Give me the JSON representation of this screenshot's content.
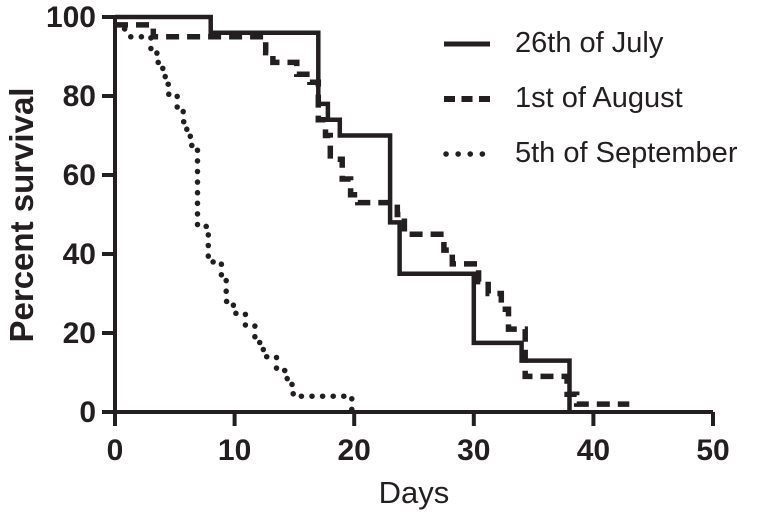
{
  "chart_data": {
    "type": "line",
    "subtype": "kaplan-meier-survival-steps",
    "title": "",
    "xlabel": "Days",
    "ylabel": "Percent survival",
    "xlim": [
      0,
      50
    ],
    "ylim": [
      0,
      100
    ],
    "xticks": [
      0,
      10,
      20,
      30,
      40,
      50
    ],
    "yticks": [
      0,
      20,
      40,
      60,
      80,
      100
    ],
    "grid": false,
    "legend_position": "top-right",
    "ink_color": "#231f20",
    "background_color": "#ffffff",
    "series": [
      {
        "name": "26th of July",
        "line_style": "solid",
        "points": [
          [
            0,
            100
          ],
          [
            8,
            100
          ],
          [
            8,
            96
          ],
          [
            17,
            96
          ],
          [
            17,
            78
          ],
          [
            17.8,
            78
          ],
          [
            17.8,
            74
          ],
          [
            18.8,
            74
          ],
          [
            18.8,
            70
          ],
          [
            23,
            70
          ],
          [
            23,
            48
          ],
          [
            23.8,
            48
          ],
          [
            23.8,
            35
          ],
          [
            30,
            35
          ],
          [
            30,
            17.5
          ],
          [
            34,
            17.5
          ],
          [
            34,
            13
          ],
          [
            38,
            13
          ],
          [
            38,
            0
          ]
        ]
      },
      {
        "name": "1st of August",
        "line_style": "dashed",
        "points": [
          [
            0,
            98
          ],
          [
            3.2,
            98
          ],
          [
            3.2,
            95
          ],
          [
            12.6,
            95
          ],
          [
            12.6,
            91
          ],
          [
            13.2,
            91
          ],
          [
            13.2,
            88.5
          ],
          [
            15.2,
            88.5
          ],
          [
            15.2,
            85.5
          ],
          [
            16.3,
            85.5
          ],
          [
            16.3,
            83.5
          ],
          [
            17,
            83.5
          ],
          [
            17,
            74
          ],
          [
            17.6,
            74
          ],
          [
            17.6,
            70
          ],
          [
            18,
            70
          ],
          [
            18,
            64
          ],
          [
            19,
            64
          ],
          [
            19,
            59
          ],
          [
            19.7,
            59
          ],
          [
            19.7,
            55
          ],
          [
            20.3,
            55
          ],
          [
            20.3,
            53
          ],
          [
            23.6,
            53
          ],
          [
            23.6,
            50
          ],
          [
            24.2,
            50
          ],
          [
            24.2,
            45
          ],
          [
            27.5,
            45
          ],
          [
            27.5,
            41
          ],
          [
            28.2,
            41
          ],
          [
            28.2,
            37.5
          ],
          [
            30.4,
            37.5
          ],
          [
            30.4,
            33
          ],
          [
            31.2,
            33
          ],
          [
            31.2,
            30
          ],
          [
            32.3,
            30
          ],
          [
            32.3,
            26
          ],
          [
            32.9,
            26
          ],
          [
            32.9,
            21
          ],
          [
            34.3,
            21
          ],
          [
            34.3,
            9
          ],
          [
            37.8,
            9
          ],
          [
            37.8,
            4.5
          ],
          [
            38.6,
            4.5
          ],
          [
            38.6,
            2
          ],
          [
            43,
            2
          ]
        ]
      },
      {
        "name": "5th of September",
        "line_style": "dotted",
        "points": [
          [
            0.8,
            97
          ],
          [
            1.2,
            95
          ],
          [
            3,
            95
          ],
          [
            3,
            91
          ],
          [
            3.5,
            91
          ],
          [
            3.5,
            88.5
          ],
          [
            4,
            88.5
          ],
          [
            4,
            85.5
          ],
          [
            4.2,
            85.5
          ],
          [
            4.2,
            83
          ],
          [
            4.5,
            83
          ],
          [
            4.5,
            80
          ],
          [
            5.2,
            80
          ],
          [
            5.2,
            76.5
          ],
          [
            5.7,
            76.5
          ],
          [
            5.7,
            73.5
          ],
          [
            6,
            73.5
          ],
          [
            6,
            70.5
          ],
          [
            6.3,
            70.5
          ],
          [
            6.3,
            67.5
          ],
          [
            6.9,
            67.5
          ],
          [
            6.9,
            47
          ],
          [
            7.8,
            47
          ],
          [
            7.8,
            38
          ],
          [
            8.9,
            38
          ],
          [
            8.9,
            34.5
          ],
          [
            9.3,
            34.5
          ],
          [
            9.3,
            28
          ],
          [
            9.9,
            28
          ],
          [
            9.9,
            25
          ],
          [
            10.9,
            25
          ],
          [
            10.9,
            22
          ],
          [
            11.7,
            22
          ],
          [
            11.7,
            19
          ],
          [
            12.1,
            19
          ],
          [
            12.1,
            16
          ],
          [
            12.4,
            16
          ],
          [
            12.4,
            14
          ],
          [
            13.5,
            14
          ],
          [
            13.5,
            10.5
          ],
          [
            14.4,
            10.5
          ],
          [
            14.4,
            7
          ],
          [
            14.9,
            7
          ],
          [
            14.9,
            4
          ],
          [
            19.8,
            4
          ],
          [
            19.8,
            0.5
          ]
        ]
      }
    ]
  }
}
